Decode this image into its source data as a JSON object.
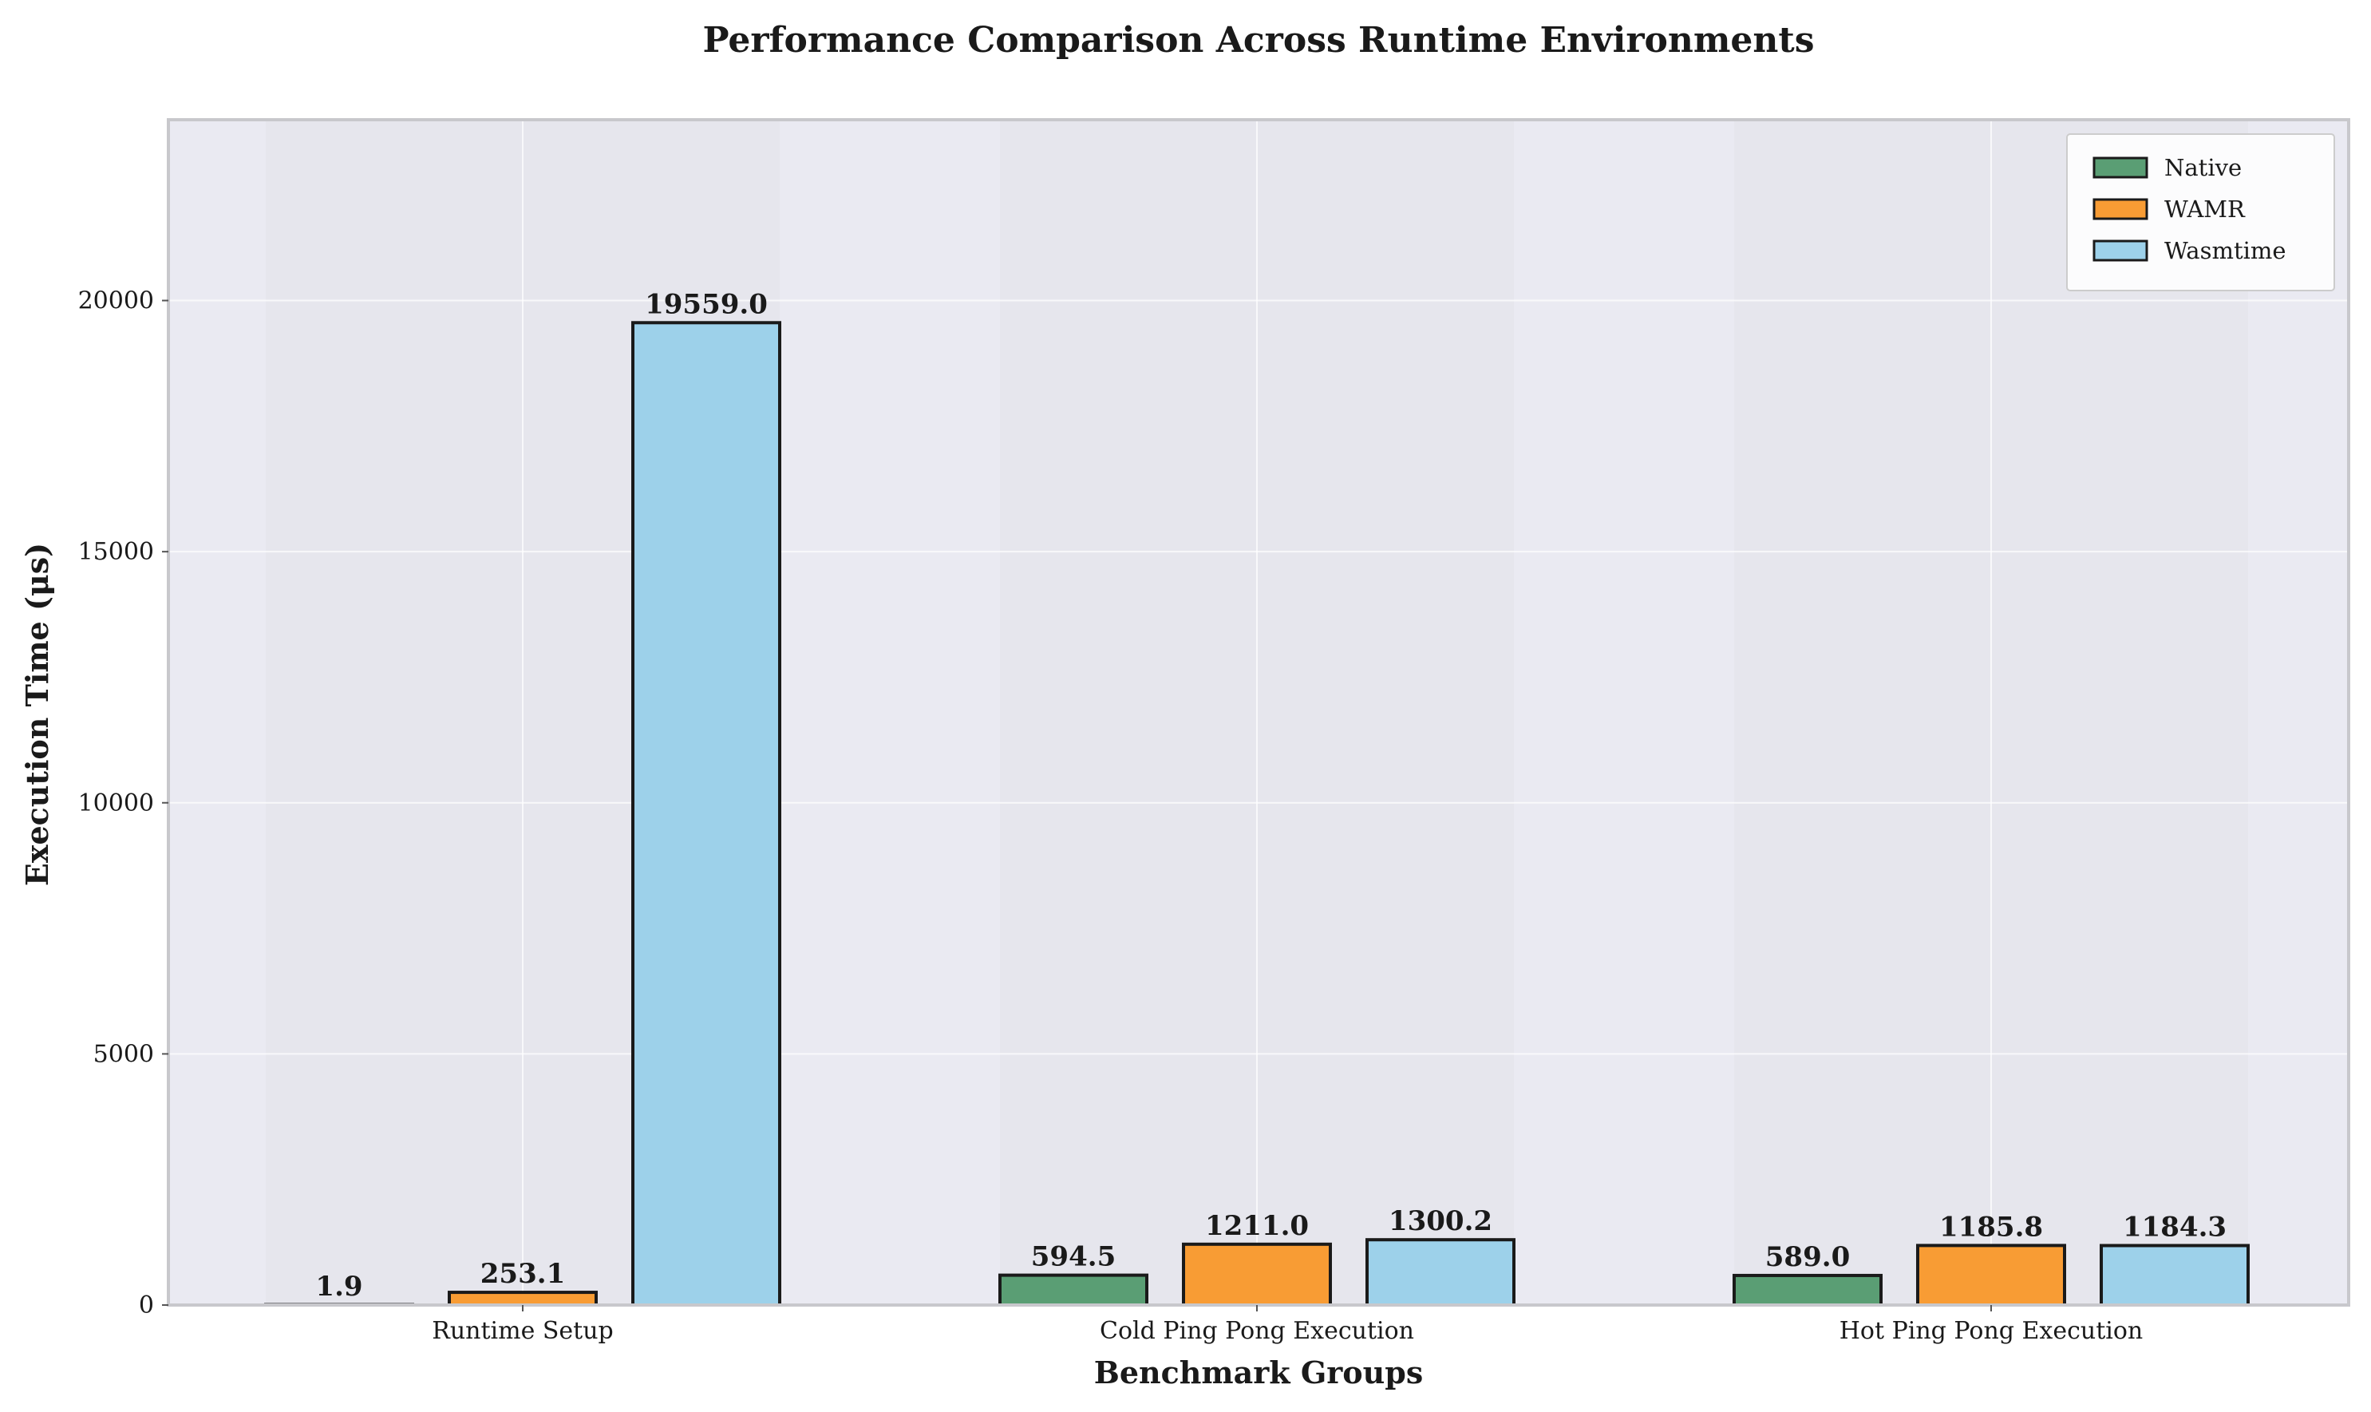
{
  "colors": {
    "Native": "#5a9e74",
    "WAMR": "#f89c34",
    "Wasmtime": "#9dd1ea",
    "plot_bg": "#eaeaf2",
    "group_band": "#e2e2ea",
    "bar_edge": "#1a1a1a"
  },
  "chart_data": {
    "type": "bar",
    "title": "Performance Comparison Across Runtime Environments",
    "xlabel": "Benchmark Groups",
    "ylabel": "Execution Time (μs)",
    "categories": [
      "Runtime Setup",
      "Cold Ping Pong Execution",
      "Hot Ping Pong Execution"
    ],
    "series": [
      {
        "name": "Native",
        "values": [
          1.9,
          594.5,
          589.0
        ],
        "labels": [
          "1.9",
          "594.5",
          "589.0"
        ]
      },
      {
        "name": "WAMR",
        "values": [
          253.1,
          1211.0,
          1185.8
        ],
        "labels": [
          "253.1",
          "1211.0",
          "1185.8"
        ]
      },
      {
        "name": "Wasmtime",
        "values": [
          19559.0,
          1300.2,
          1184.3
        ],
        "labels": [
          "19559.0",
          "1300.2",
          "1184.3"
        ]
      }
    ],
    "ylim": [
      0,
      23600
    ],
    "yticks": [
      0,
      5000,
      10000,
      15000,
      20000
    ],
    "ytick_labels": [
      "0",
      "5000",
      "10000",
      "15000",
      "20000"
    ],
    "grid": true,
    "legend_position": "top-right"
  }
}
